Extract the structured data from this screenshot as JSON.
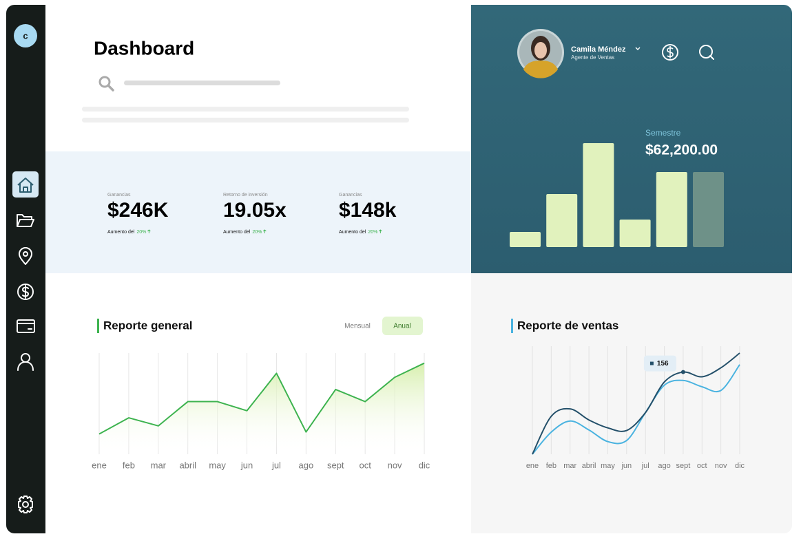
{
  "sidebar": {
    "avatar": "c"
  },
  "header": {
    "title": "Dashboard"
  },
  "stats": [
    {
      "label": "Ganancias",
      "value": "$246K",
      "note": "Aumento del",
      "change": "20%"
    },
    {
      "label": "Retorno de inversión",
      "value": "19.05x",
      "note": "Aumento del",
      "change": "20%"
    },
    {
      "label": "Ganancias",
      "value": "$148k",
      "note": "Aumento del",
      "change": "20%"
    }
  ],
  "profile": {
    "name": "Camila Méndez",
    "role": "Agente de Ventas"
  },
  "semester": {
    "label": "Semestre",
    "total": "$62,200.00",
    "chart": {
      "type": "bar",
      "values": [
        22,
        77,
        151,
        40,
        109,
        109
      ],
      "colors": [
        "#e1f2bd",
        "#e1f2bd",
        "#e1f2bd",
        "#e1f2bd",
        "#e1f2bd",
        "#6e9188"
      ],
      "ylim": [
        0,
        155
      ]
    }
  },
  "general_report": {
    "title": "Reporte general",
    "tabs": [
      "Mensual",
      "Anual"
    ],
    "chart": {
      "type": "area",
      "categories": [
        "ene",
        "feb",
        "mar",
        "abril",
        "may",
        "jun",
        "jul",
        "ago",
        "sept",
        "oct",
        "nov",
        "dic"
      ],
      "values": [
        20,
        36,
        28,
        52,
        52,
        43,
        80,
        22,
        64,
        52,
        76,
        90
      ],
      "color": "#3db34f",
      "ylim": [
        0,
        100
      ]
    }
  },
  "sales_report": {
    "title": "Reporte de ventas",
    "chart": {
      "type": "line",
      "categories": [
        "ene",
        "feb",
        "mar",
        "abril",
        "may",
        "jun",
        "jul",
        "ago",
        "sept",
        "oct",
        "nov",
        "dic"
      ],
      "series": [
        {
          "color": "#24506a",
          "values": [
            0,
            72,
            86,
            65,
            50,
            45,
            79,
            137,
            156,
            147,
            164,
            192
          ]
        },
        {
          "color": "#4ab3e0",
          "values": [
            0,
            42,
            63,
            46,
            24,
            26,
            79,
            131,
            140,
            128,
            121,
            170
          ]
        }
      ],
      "ylim": [
        0,
        192
      ],
      "highlight": {
        "series": 0,
        "index": 8
      }
    }
  }
}
